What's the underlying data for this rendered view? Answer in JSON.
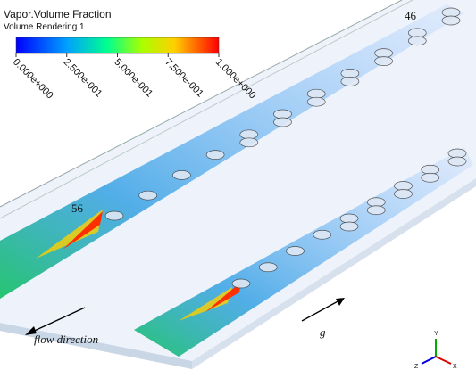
{
  "legend": {
    "title": "Vapor.Volume Fraction",
    "subtitle": "Volume Rendering 1",
    "ticks": [
      {
        "value": 0,
        "label": "0.000e+000"
      },
      {
        "value": 0.25,
        "label": "2.500e-001"
      },
      {
        "value": 0.5,
        "label": "5.000e-001"
      },
      {
        "value": 0.75,
        "label": "7.500e-001"
      },
      {
        "value": 1,
        "label": "1.000e+000"
      }
    ]
  },
  "annotations": {
    "top_number": "46",
    "left_number": "56",
    "flow": "flow direction",
    "gravity": "g"
  },
  "triad": {
    "x": "X",
    "y": "Y",
    "z": "Z"
  }
}
